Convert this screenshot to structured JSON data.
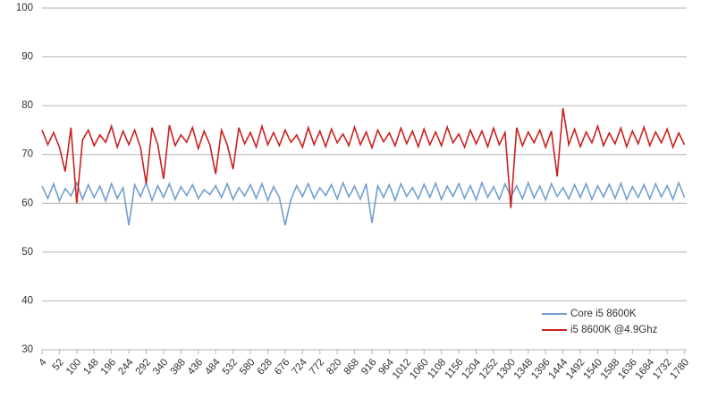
{
  "chart_data": {
    "type": "line",
    "x": [
      4,
      20,
      36,
      52,
      68,
      84,
      100,
      116,
      132,
      148,
      164,
      180,
      196,
      212,
      228,
      244,
      260,
      276,
      292,
      308,
      324,
      340,
      356,
      372,
      388,
      404,
      420,
      436,
      452,
      468,
      484,
      500,
      516,
      532,
      548,
      564,
      580,
      596,
      612,
      628,
      644,
      660,
      676,
      692,
      708,
      724,
      740,
      756,
      772,
      788,
      804,
      820,
      836,
      852,
      868,
      884,
      900,
      916,
      932,
      948,
      964,
      980,
      996,
      1012,
      1028,
      1044,
      1060,
      1076,
      1092,
      1108,
      1124,
      1140,
      1156,
      1172,
      1188,
      1204,
      1220,
      1236,
      1252,
      1268,
      1284,
      1300,
      1316,
      1332,
      1348,
      1364,
      1380,
      1396,
      1412,
      1428,
      1444,
      1460,
      1476,
      1492,
      1508,
      1524,
      1540,
      1556,
      1572,
      1588,
      1604,
      1620,
      1636,
      1652,
      1668,
      1684,
      1700,
      1716,
      1732,
      1748,
      1764,
      1780
    ],
    "series": [
      {
        "name": "Core i5 8600K",
        "color": "#729fcf",
        "values": [
          63.5,
          61,
          64,
          60.5,
          63,
          61.5,
          64.2,
          60.8,
          63.8,
          61.2,
          63.5,
          60.5,
          64,
          61,
          63.2,
          55.5,
          63.8,
          61.4,
          64.2,
          60.6,
          63.6,
          61.2,
          64,
          60.8,
          63.4,
          61.6,
          63.8,
          61,
          62.8,
          61.8,
          63.6,
          61.2,
          64,
          60.8,
          63.2,
          61.5,
          63.8,
          61,
          64,
          60.6,
          63.4,
          61.2,
          55.5,
          60.8,
          63.6,
          61.4,
          64,
          61,
          63.2,
          61.6,
          63.8,
          60.9,
          64.2,
          61.3,
          63.5,
          60.8,
          64,
          56,
          63.6,
          61.2,
          63.8,
          60.6,
          64,
          61.4,
          63.2,
          60.9,
          63.9,
          61.2,
          64.1,
          60.8,
          63.5,
          61.4,
          64,
          61,
          63.6,
          60.7,
          64.2,
          61.2,
          63.4,
          60.8,
          64,
          61.3,
          63.6,
          60.9,
          64.2,
          61.1,
          63.5,
          60.7,
          64,
          61.4,
          63.2,
          60.9,
          63.8,
          61.2,
          64,
          60.8,
          63.6,
          61.3,
          63.9,
          61,
          64.1,
          60.8,
          63.4,
          61.2,
          63.8,
          60.9,
          64,
          61.3,
          63.6,
          60.8,
          64.2,
          61.2
        ]
      },
      {
        "name": "i5 8600K @4.9Ghz",
        "color": "#c9211e",
        "values": [
          75,
          72,
          74.5,
          71.5,
          66.5,
          75.5,
          60,
          73,
          75,
          71.8,
          74,
          72.5,
          75.8,
          71.5,
          74.8,
          72,
          75,
          71.5,
          64,
          75.5,
          72,
          65,
          76,
          71.8,
          74,
          72.5,
          75.5,
          71.2,
          74.8,
          72,
          66,
          75,
          72,
          67,
          75.5,
          72.2,
          74.5,
          71.5,
          75.8,
          72,
          74.5,
          71.8,
          75,
          72.5,
          74,
          71.5,
          75.5,
          72,
          74.8,
          71.6,
          75.2,
          72.4,
          74.2,
          71.8,
          75.6,
          72,
          74.6,
          71.4,
          75,
          72.6,
          74.4,
          71.8,
          75.4,
          72.2,
          74.8,
          71.6,
          75.2,
          72,
          74.6,
          71.8,
          75.6,
          72.4,
          74.2,
          71.5,
          75,
          72.2,
          74.8,
          71.6,
          75.4,
          72,
          74.5,
          59,
          75.5,
          71.8,
          74.6,
          72.4,
          75,
          71.5,
          74.8,
          65.5,
          79.5,
          72,
          75.2,
          71.6,
          74.6,
          72.4,
          75.8,
          71.8,
          74.4,
          72.2,
          75.4,
          71.6,
          74.8,
          72.2,
          75.6,
          71.8,
          74.6,
          72.4,
          75.2,
          71.5,
          74.4,
          72
        ]
      }
    ],
    "xlim": [
      4,
      1786
    ],
    "xticks": [
      4,
      52,
      100,
      148,
      196,
      244,
      292,
      340,
      388,
      436,
      484,
      532,
      580,
      628,
      676,
      724,
      772,
      820,
      868,
      916,
      964,
      1012,
      1060,
      1108,
      1156,
      1204,
      1252,
      1300,
      1348,
      1396,
      1444,
      1492,
      1540,
      1588,
      1636,
      1684,
      1732,
      1780
    ],
    "ylim": [
      30,
      100
    ],
    "yticks": [
      30,
      40,
      50,
      60,
      70,
      80,
      90,
      100
    ],
    "grid": true,
    "legend": "lower-right"
  }
}
